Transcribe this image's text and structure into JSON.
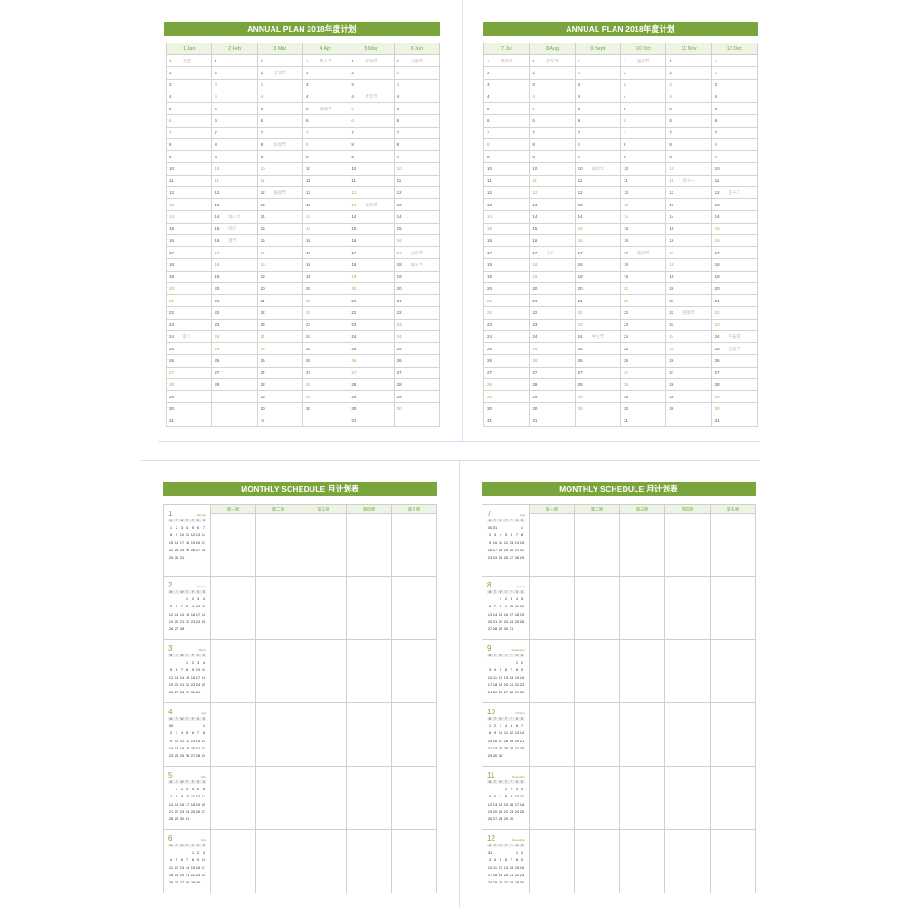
{
  "year": 2018,
  "colors": {
    "accent": "#7aa53c",
    "weekend": "#8db84a",
    "holiday_text": "#bbbbbb",
    "page_divider": "#cfe3f2"
  },
  "annual_pages": [
    {
      "title": "ANNUAL PLAN  2018年度计划",
      "months": [
        {
          "label": "1 Jan",
          "month": 1
        },
        {
          "label": "2 Feb",
          "month": 2
        },
        {
          "label": "3 Mar",
          "month": 3
        },
        {
          "label": "4 Apr",
          "month": 4
        },
        {
          "label": "5 May",
          "month": 5
        },
        {
          "label": "6 Jun",
          "month": 6
        }
      ]
    },
    {
      "title": "ANNUAL PLAN  2018年度计划",
      "months": [
        {
          "label": "7 Jul",
          "month": 7
        },
        {
          "label": "8 Aug",
          "month": 8
        },
        {
          "label": "9 Sept",
          "month": 9
        },
        {
          "label": "10 Oct",
          "month": 10
        },
        {
          "label": "11 Nov",
          "month": 11
        },
        {
          "label": "12 Dec",
          "month": 12
        }
      ]
    }
  ],
  "holidays": {
    "1-1": "元旦",
    "1-24": "腊八",
    "2-14": "情人节",
    "2-15": "除夕",
    "2-16": "春节",
    "3-2": "元宵节",
    "3-8": "妇女节",
    "3-12": "植树节",
    "4-1": "愚人节",
    "4-5": "清明节",
    "5-1": "劳动节",
    "5-4": "青年节",
    "5-13": "母亲节",
    "6-1": "儿童节",
    "6-17": "父亲节",
    "6-18": "端午节",
    "7-1": "建党节",
    "8-1": "建军节",
    "8-17": "七夕",
    "9-10": "教师节",
    "9-24": "中秋节",
    "10-1": "国庆节",
    "10-17": "重阳节",
    "11-11": "双十一",
    "11-22": "感恩节",
    "12-12": "双十二",
    "12-24": "平安夜",
    "12-25": "圣诞节"
  },
  "weekday_initials": [
    "M",
    "T",
    "W",
    "T",
    "F",
    "S",
    "S"
  ],
  "monthly_pages": [
    {
      "title": "MONTHLY SCHEDULE  月计划表",
      "weeks": [
        "第一周",
        "第二周",
        "第三周",
        "第四周",
        "第五周"
      ],
      "months": [
        {
          "num": "1",
          "name": "January"
        },
        {
          "num": "2",
          "name": "February"
        },
        {
          "num": "3",
          "name": "March"
        },
        {
          "num": "4",
          "name": "April"
        },
        {
          "num": "5",
          "name": "May"
        },
        {
          "num": "6",
          "name": "June"
        }
      ]
    },
    {
      "title": "MONTHLY SCHEDULE  月计划表",
      "weeks": [
        "第一周",
        "第二周",
        "第三周",
        "第四周",
        "第五周"
      ],
      "months": [
        {
          "num": "7",
          "name": "July"
        },
        {
          "num": "8",
          "name": "August"
        },
        {
          "num": "9",
          "name": "September"
        },
        {
          "num": "10",
          "name": "October"
        },
        {
          "num": "11",
          "name": "November"
        },
        {
          "num": "12",
          "name": "December"
        }
      ]
    }
  ]
}
